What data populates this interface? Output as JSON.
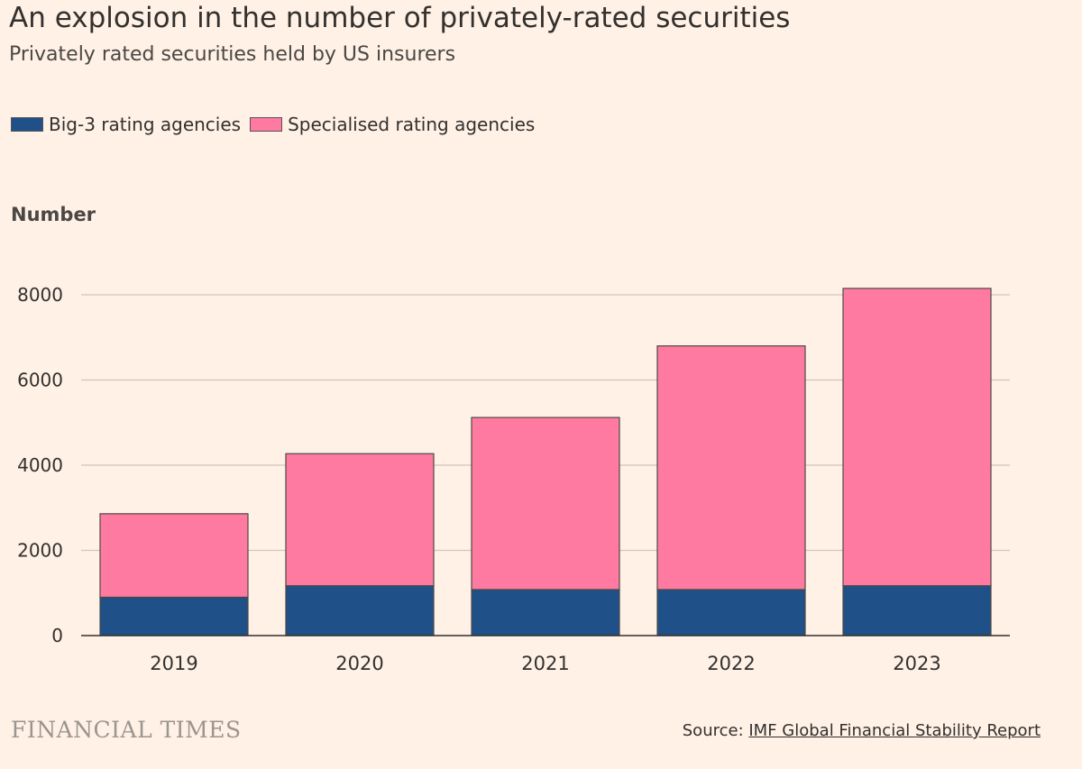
{
  "chart_data": {
    "type": "bar",
    "stacked": true,
    "title": "An explosion in the number of privately-rated securities",
    "subtitle": "Privately rated securities held by US insurers",
    "ylabel": "Number",
    "xlabel": "",
    "categories": [
      "2019",
      "2020",
      "2021",
      "2022",
      "2023"
    ],
    "series": [
      {
        "name": "Big-3 rating agencies",
        "values": [
          900,
          1170,
          1080,
          1080,
          1170
        ],
        "color": "#1f5188"
      },
      {
        "name": "Specialised rating agencies",
        "values": [
          1960,
          3100,
          4040,
          5720,
          6980
        ],
        "color": "#ff7aa1"
      }
    ],
    "ylim": [
      0,
      8000
    ],
    "yticks": [
      0,
      2000,
      4000,
      6000,
      8000
    ],
    "grid": true,
    "legend": "top-left"
  },
  "footer": {
    "brand": "FINANCIAL TIMES",
    "source_prefix": "Source: ",
    "source_link": "IMF Global Financial Stability Report"
  }
}
